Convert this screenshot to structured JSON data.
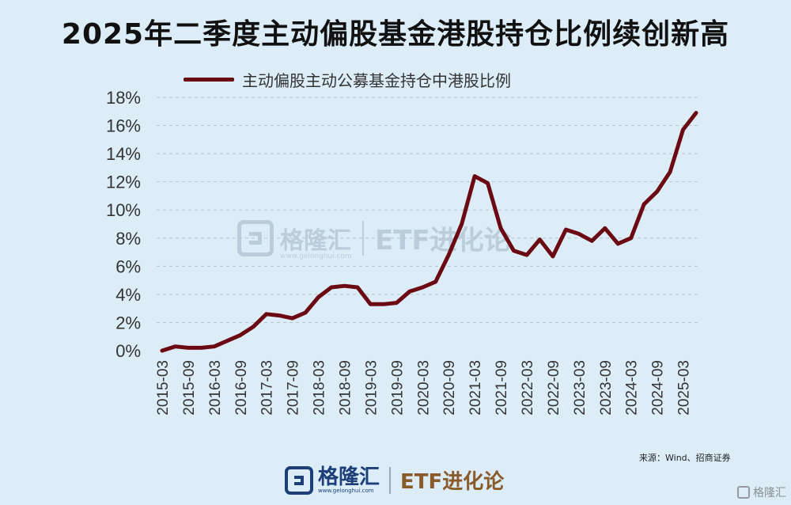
{
  "title": "2025年二季度主动偏股基金港股持仓比例续创新高",
  "legend": {
    "series_name": "主动偏股主动公募基金持仓中港股比例"
  },
  "watermark": {
    "brand": "格隆汇",
    "site": "www.gelonghui.com",
    "column": "ETF进化论"
  },
  "source_note": "来源：Wind、招商证券",
  "footer": {
    "brand": "格隆汇",
    "site": "www.gelonghui.com",
    "column": "ETF进化论"
  },
  "corner_mark": "格隆汇",
  "colors": {
    "line": "#6b0a12",
    "grid": "#b8c4cc",
    "background": "#dcedf8",
    "text": "#333333"
  },
  "chart_data": {
    "type": "line",
    "title": "2025年二季度主动偏股基金港股持仓比例续创新高",
    "xlabel": "",
    "ylabel": "",
    "ylim": [
      0,
      18
    ],
    "y_ticks": [
      "0%",
      "2%",
      "4%",
      "6%",
      "8%",
      "10%",
      "12%",
      "14%",
      "16%",
      "18%"
    ],
    "x_tick_labels": [
      "2015-03",
      "2015-09",
      "2016-03",
      "2016-09",
      "2017-03",
      "2017-09",
      "2018-03",
      "2018-09",
      "2019-03",
      "2019-09",
      "2020-03",
      "2020-09",
      "2021-03",
      "2021-09",
      "2022-03",
      "2022-09",
      "2023-03",
      "2023-09",
      "2024-03",
      "2024-09",
      "2025-03"
    ],
    "grid": true,
    "legend_position": "top",
    "series": [
      {
        "name": "主动偏股主动公募基金持仓中港股比例",
        "x": [
          "2015-03",
          "2015-06",
          "2015-09",
          "2015-12",
          "2016-03",
          "2016-06",
          "2016-09",
          "2016-12",
          "2017-03",
          "2017-06",
          "2017-09",
          "2017-12",
          "2018-03",
          "2018-06",
          "2018-09",
          "2018-12",
          "2019-03",
          "2019-06",
          "2019-09",
          "2019-12",
          "2020-03",
          "2020-06",
          "2020-09",
          "2020-12",
          "2021-03",
          "2021-06",
          "2021-09",
          "2021-12",
          "2022-03",
          "2022-06",
          "2022-09",
          "2022-12",
          "2023-03",
          "2023-06",
          "2023-09",
          "2023-12",
          "2024-03",
          "2024-06",
          "2024-09",
          "2024-12",
          "2025-03",
          "2025-06"
        ],
        "values": [
          0.0,
          0.3,
          0.2,
          0.2,
          0.3,
          0.7,
          1.1,
          1.7,
          2.6,
          2.5,
          2.3,
          2.7,
          3.8,
          4.5,
          4.6,
          4.5,
          3.3,
          3.3,
          3.4,
          4.2,
          4.5,
          4.9,
          6.8,
          9.0,
          12.4,
          11.9,
          8.7,
          7.1,
          6.8,
          7.9,
          6.7,
          8.6,
          8.3,
          7.8,
          8.7,
          7.6,
          8.0,
          10.4,
          11.3,
          12.7,
          15.7,
          16.9
        ]
      }
    ]
  }
}
